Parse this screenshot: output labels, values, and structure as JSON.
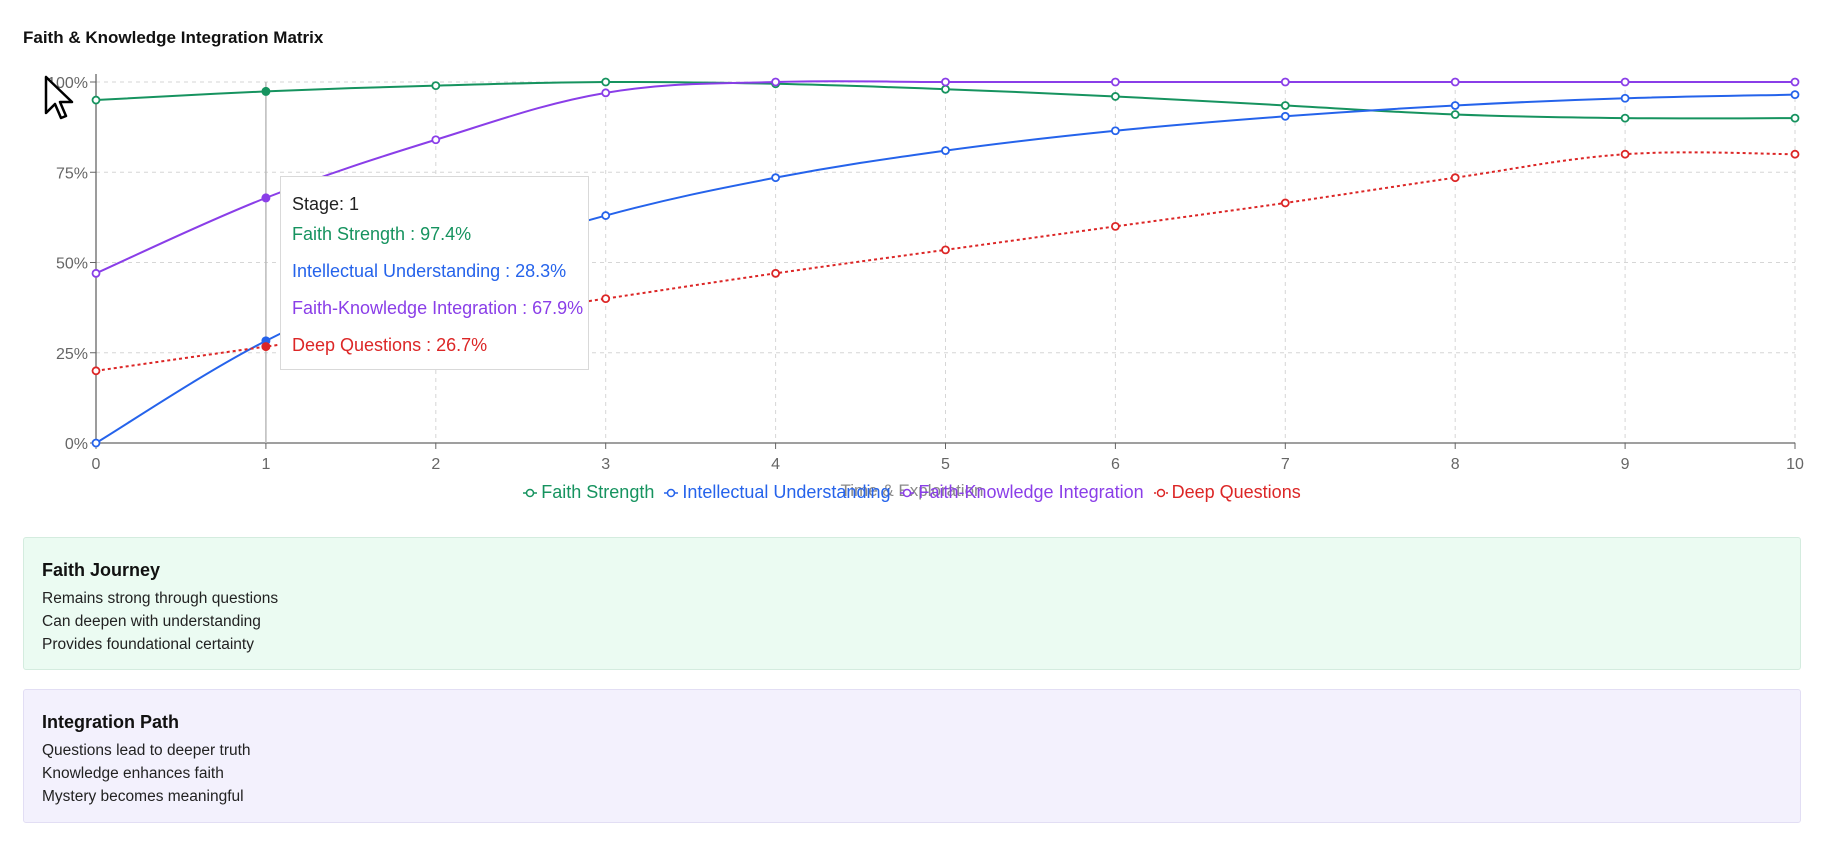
{
  "page": {
    "title": "Faith & Knowledge Integration Matrix"
  },
  "chart_data": {
    "type": "line",
    "title": "Faith & Knowledge Integration Matrix",
    "xlabel": "Time & Exploration",
    "ylabel": "",
    "x": [
      0,
      1,
      2,
      3,
      4,
      5,
      6,
      7,
      8,
      9,
      10
    ],
    "xlim": [
      0,
      10
    ],
    "ylim": [
      0,
      100
    ],
    "y_ticks": [
      "0%",
      "25%",
      "50%",
      "75%",
      "100%"
    ],
    "x_ticks": [
      "0",
      "1",
      "2",
      "3",
      "4",
      "5",
      "6",
      "7",
      "8",
      "9",
      "10"
    ],
    "grid": true,
    "legend_position": "bottom",
    "series": [
      {
        "name": "Faith Strength",
        "color": "#16935f",
        "dashed": false,
        "values": [
          95,
          97.4,
          99,
          100,
          99.5,
          98,
          96,
          93.5,
          91,
          90,
          90
        ]
      },
      {
        "name": "Intellectual Understanding",
        "color": "#2563eb",
        "dashed": false,
        "values": [
          0,
          28.3,
          48,
          63,
          73.5,
          81,
          86.5,
          90.5,
          93.5,
          95.5,
          96.5
        ]
      },
      {
        "name": "Faith-Knowledge Integration",
        "color": "#8a3ee8",
        "dashed": false,
        "values": [
          47,
          67.9,
          84,
          97,
          100,
          100,
          100,
          100,
          100,
          100,
          100
        ]
      },
      {
        "name": "Deep Questions",
        "color": "#dc2626",
        "dashed": true,
        "values": [
          20,
          26.7,
          33,
          40,
          47,
          53.5,
          60,
          66.5,
          73.5,
          80,
          80
        ]
      }
    ],
    "tooltip": {
      "stage_label": "Stage: 1",
      "rows": [
        {
          "text": "Faith Strength : 97.4%",
          "color": "#16935f"
        },
        {
          "text": "Intellectual Understanding : 28.3%",
          "color": "#2563eb"
        },
        {
          "text": "Faith-Knowledge Integration : 67.9%",
          "color": "#8a3ee8"
        },
        {
          "text": "Deep Questions : 26.7%",
          "color": "#dc2626"
        }
      ]
    }
  },
  "cards": [
    {
      "title": "Faith Journey",
      "lines": [
        "Remains strong through questions",
        "Can deepen with understanding",
        "Provides foundational certainty"
      ]
    },
    {
      "title": "Integration Path",
      "lines": [
        "Questions lead to deeper truth",
        "Knowledge enhances faith",
        "Mystery becomes meaningful"
      ]
    }
  ],
  "icons": {
    "cursor": "mouse-pointer-icon"
  }
}
